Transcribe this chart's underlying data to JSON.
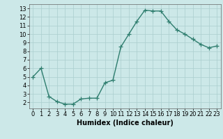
{
  "x": [
    0,
    1,
    2,
    3,
    4,
    5,
    6,
    7,
    8,
    9,
    10,
    11,
    12,
    13,
    14,
    15,
    16,
    17,
    18,
    19,
    20,
    21,
    22,
    23
  ],
  "y": [
    5.0,
    6.0,
    2.7,
    2.1,
    1.8,
    1.8,
    2.4,
    2.5,
    2.5,
    4.3,
    4.6,
    8.5,
    10.0,
    11.5,
    12.8,
    12.7,
    12.7,
    11.5,
    10.5,
    10.0,
    9.4,
    8.8,
    8.4,
    8.6
  ],
  "line_color": "#2e7d6e",
  "marker": "+",
  "markersize": 4,
  "linewidth": 1.0,
  "bg_color": "#cce8e8",
  "grid_color": "#aacece",
  "xlabel": "Humidex (Indice chaleur)",
  "xlabel_fontsize": 7,
  "tick_fontsize": 6,
  "xlim": [
    -0.5,
    23.5
  ],
  "ylim": [
    1.3,
    13.5
  ],
  "yticks": [
    2,
    3,
    4,
    5,
    6,
    7,
    8,
    9,
    10,
    11,
    12,
    13
  ],
  "xticks": [
    0,
    1,
    2,
    3,
    4,
    5,
    6,
    7,
    8,
    9,
    10,
    11,
    12,
    13,
    14,
    15,
    16,
    17,
    18,
    19,
    20,
    21,
    22,
    23
  ]
}
